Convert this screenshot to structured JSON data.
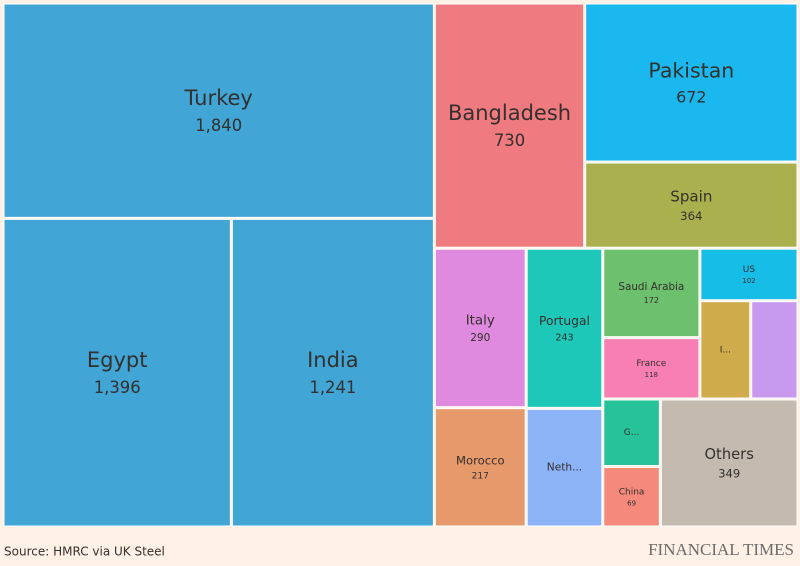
{
  "chart_data": {
    "type": "treemap",
    "categories": [
      "Turkey",
      "Egypt",
      "India",
      "Bangladesh",
      "Pakistan",
      "Spain",
      "Italy",
      "Portugal",
      "Saudi Arabia",
      "US",
      "France",
      "Morocco",
      "Neth...",
      "G...",
      "China",
      "Others",
      "I...",
      null
    ],
    "values": [
      1840,
      1396,
      1241,
      730,
      672,
      364,
      290,
      243,
      172,
      102,
      118,
      217,
      180,
      77,
      69,
      349,
      99,
      92
    ],
    "value_labels": [
      "1,840",
      "1,396",
      "1,241",
      "730",
      "672",
      "364",
      "290",
      "243",
      "172",
      "102",
      "118",
      "217",
      null,
      null,
      "69",
      "349",
      null,
      null
    ],
    "colors": [
      "#41a5d6",
      "#41a5d6",
      "#41a5d6",
      "#ef7a80",
      "#1bb8ef",
      "#abb04f",
      "#df8adf",
      "#1ec8b8",
      "#6cc06e",
      "#16bde6",
      "#f77fb3",
      "#e6996a",
      "#8db3f7",
      "#28c29a",
      "#f5897c",
      "#c5bab0",
      "#d0ab4c",
      "#c79af0"
    ],
    "source": "Source: HMRC via UK Steel",
    "brand": "FINANCIAL TIMES"
  }
}
